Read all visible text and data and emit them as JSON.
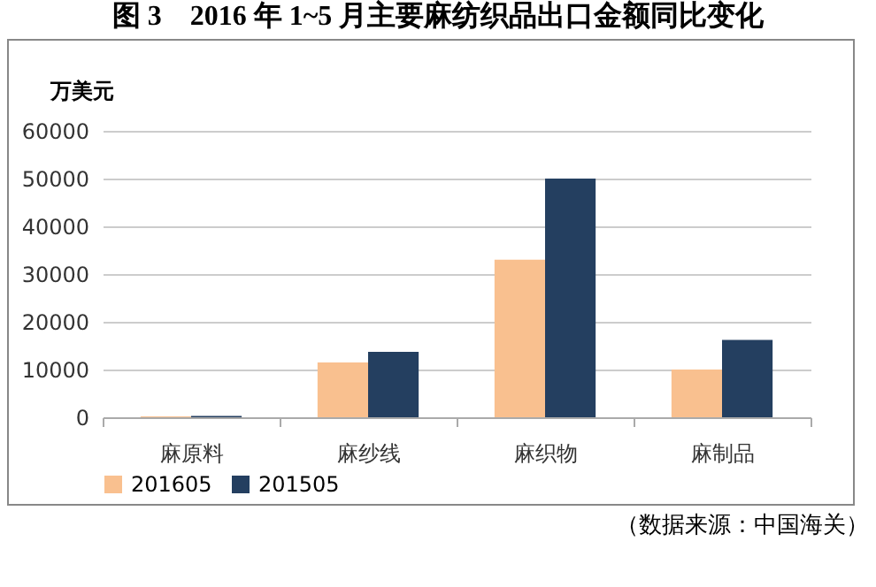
{
  "chart_data": {
    "type": "bar",
    "title": "图 3　2016 年 1~5 月主要麻纺织品出口金额同比变化",
    "ylabel": "万美元",
    "categories": [
      "麻原料",
      "麻纱线",
      "麻织物",
      "麻制品"
    ],
    "series": [
      {
        "name": "201605",
        "color": "#f9c08f",
        "values": [
          200,
          11500,
          33000,
          10000
        ]
      },
      {
        "name": "201505",
        "color": "#243f60",
        "values": [
          300,
          13700,
          50000,
          16200
        ]
      }
    ],
    "ylim": [
      0,
      60000
    ],
    "yticks": [
      0,
      10000,
      20000,
      30000,
      40000,
      50000,
      60000
    ],
    "grid": "y",
    "legend": "bottom",
    "annotations": [
      "（数据来源：中国海关）"
    ]
  }
}
